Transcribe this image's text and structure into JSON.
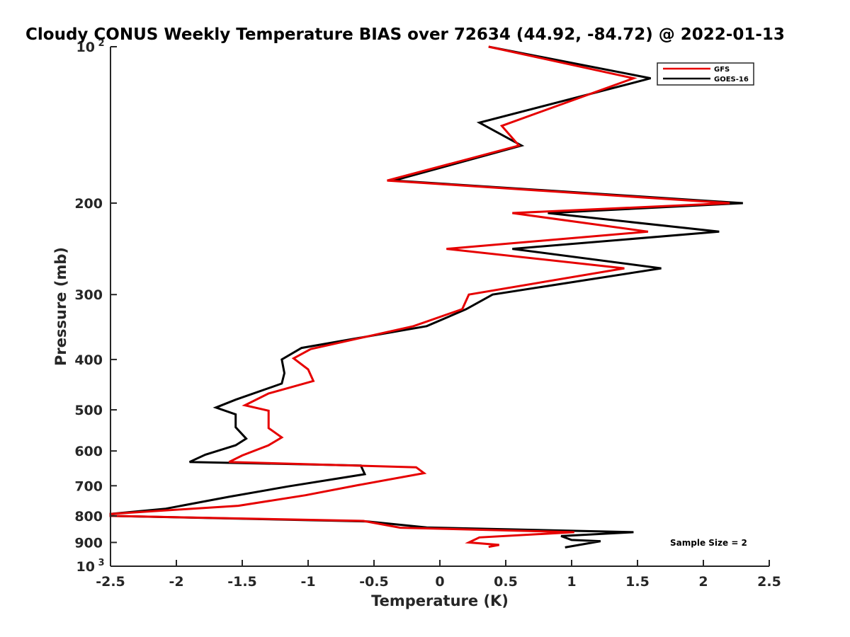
{
  "chart_data": {
    "type": "line",
    "title": "Cloudy CONUS Weekly Temperature BIAS over 72634 (44.92, -84.72) @ 2022-01-13",
    "xlabel": "Temperature (K)",
    "ylabel": "Pressure (mb)",
    "xlim": [
      -2.5,
      2.5
    ],
    "ylim": [
      100,
      1000
    ],
    "y_scale": "log",
    "y_reversed": true,
    "grid": false,
    "legend_position": "top-right",
    "x_ticks": [
      "-2.5",
      "-2",
      "-1.5",
      "-1",
      "-0.5",
      "0",
      "0.5",
      "1",
      "1.5",
      "2",
      "2.5"
    ],
    "y_ticks": [
      {
        "value": 100,
        "base": "10",
        "exp": "2"
      },
      {
        "value": 200,
        "label": "200"
      },
      {
        "value": 300,
        "label": "300"
      },
      {
        "value": 400,
        "label": "400"
      },
      {
        "value": 500,
        "label": "500"
      },
      {
        "value": 600,
        "label": "600"
      },
      {
        "value": 700,
        "label": "700"
      },
      {
        "value": 800,
        "label": "800"
      },
      {
        "value": 900,
        "label": "900"
      },
      {
        "value": 1000,
        "base": "10",
        "exp": "3"
      }
    ],
    "series": [
      {
        "name": "GFS",
        "color": "#e60000",
        "points": [
          [
            0.37,
            100
          ],
          [
            1.47,
            115
          ],
          [
            0.47,
            142
          ],
          [
            0.6,
            155
          ],
          [
            -0.4,
            181
          ],
          [
            2.2,
            200
          ],
          [
            0.55,
            209
          ],
          [
            1.58,
            227
          ],
          [
            0.05,
            245
          ],
          [
            1.4,
            267
          ],
          [
            0.22,
            300
          ],
          [
            0.17,
            320
          ],
          [
            -0.2,
            345
          ],
          [
            -0.98,
            382
          ],
          [
            -1.11,
            398
          ],
          [
            -1.0,
            418
          ],
          [
            -0.96,
            440
          ],
          [
            -1.3,
            465
          ],
          [
            -1.48,
            490
          ],
          [
            -1.3,
            502
          ],
          [
            -1.3,
            542
          ],
          [
            -1.2,
            565
          ],
          [
            -1.3,
            585
          ],
          [
            -1.5,
            612
          ],
          [
            -1.6,
            630
          ],
          [
            -0.18,
            645
          ],
          [
            -0.12,
            662
          ],
          [
            -0.62,
            698
          ],
          [
            -1.02,
            730
          ],
          [
            -1.53,
            765
          ],
          [
            -2.5,
            793
          ],
          [
            -2.5,
            800
          ],
          [
            -0.58,
            818
          ],
          [
            -0.3,
            843
          ],
          [
            1.02,
            860
          ],
          [
            0.3,
            880
          ],
          [
            0.22,
            900
          ],
          [
            0.45,
            910
          ],
          [
            0.37,
            918
          ]
        ]
      },
      {
        "name": "GOES-16",
        "color": "#000000",
        "points": [
          [
            0.37,
            100
          ],
          [
            1.6,
            115
          ],
          [
            0.3,
            140
          ],
          [
            0.62,
            155
          ],
          [
            -0.35,
            181
          ],
          [
            2.3,
            200
          ],
          [
            0.82,
            209
          ],
          [
            2.12,
            227
          ],
          [
            0.55,
            245
          ],
          [
            1.68,
            267
          ],
          [
            0.4,
            300
          ],
          [
            0.2,
            320
          ],
          [
            -0.1,
            345
          ],
          [
            -1.05,
            380
          ],
          [
            -1.2,
            400
          ],
          [
            -1.18,
            425
          ],
          [
            -1.2,
            445
          ],
          [
            -1.55,
            478
          ],
          [
            -1.7,
            495
          ],
          [
            -1.55,
            510
          ],
          [
            -1.55,
            540
          ],
          [
            -1.47,
            568
          ],
          [
            -1.55,
            585
          ],
          [
            -1.78,
            610
          ],
          [
            -1.9,
            630
          ],
          [
            -0.6,
            640
          ],
          [
            -0.57,
            665
          ],
          [
            -1.15,
            702
          ],
          [
            -1.6,
            735
          ],
          [
            -2.08,
            775
          ],
          [
            -2.5,
            793
          ],
          [
            -2.5,
            800
          ],
          [
            -0.55,
            820
          ],
          [
            -0.1,
            842
          ],
          [
            1.47,
            860
          ],
          [
            0.92,
            875
          ],
          [
            1.0,
            890
          ],
          [
            1.22,
            895
          ],
          [
            0.95,
            920
          ]
        ]
      }
    ],
    "annotation": "Sample Size = 2"
  }
}
